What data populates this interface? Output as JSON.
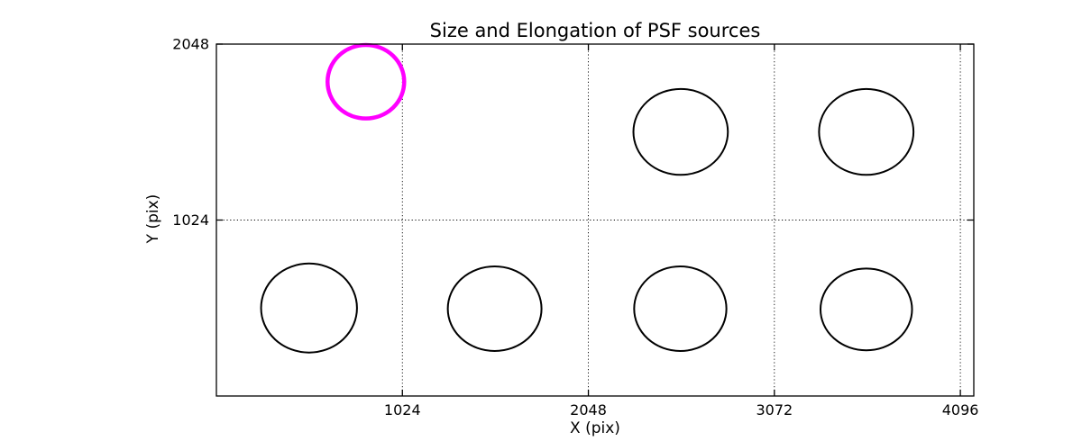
{
  "figure": {
    "background": "#ffffff",
    "axes_color": "#000000",
    "grid_color": "#000000"
  },
  "chart_data": {
    "type": "scatter",
    "title": "Size and Elongation of PSF sources",
    "xlabel": "X (pix)",
    "ylabel": "Y (pix)",
    "xlim": [
      0,
      4170
    ],
    "ylim": [
      0,
      2048
    ],
    "x_ticks": [
      1024,
      2048,
      3072,
      4096
    ],
    "y_ticks": [
      1024,
      2048
    ],
    "grid": true,
    "grid_style": "dotted",
    "legend": "none",
    "highlight_color": "#ff00ff",
    "series_color": "#000000",
    "ellipses": [
      {
        "x": 823,
        "y": 1829,
        "rx": 211,
        "ry": 214,
        "color": "#ff00ff",
        "line_width": 4.5,
        "name": "psf-ellipse-highlighted"
      },
      {
        "x": 510,
        "y": 512,
        "rx": 264,
        "ry": 259,
        "color": "#000000",
        "line_width": 2,
        "name": "psf-ellipse"
      },
      {
        "x": 1532,
        "y": 508,
        "rx": 258,
        "ry": 246,
        "color": "#000000",
        "line_width": 2,
        "name": "psf-ellipse"
      },
      {
        "x": 2554,
        "y": 508,
        "rx": 254,
        "ry": 246,
        "color": "#000000",
        "line_width": 2,
        "name": "psf-ellipse"
      },
      {
        "x": 3578,
        "y": 504,
        "rx": 252,
        "ry": 238,
        "color": "#000000",
        "line_width": 2,
        "name": "psf-ellipse"
      },
      {
        "x": 2556,
        "y": 1537,
        "rx": 260,
        "ry": 250,
        "color": "#000000",
        "line_width": 2,
        "name": "psf-ellipse"
      },
      {
        "x": 3578,
        "y": 1537,
        "rx": 260,
        "ry": 250,
        "color": "#000000",
        "line_width": 2,
        "name": "psf-ellipse"
      }
    ]
  }
}
